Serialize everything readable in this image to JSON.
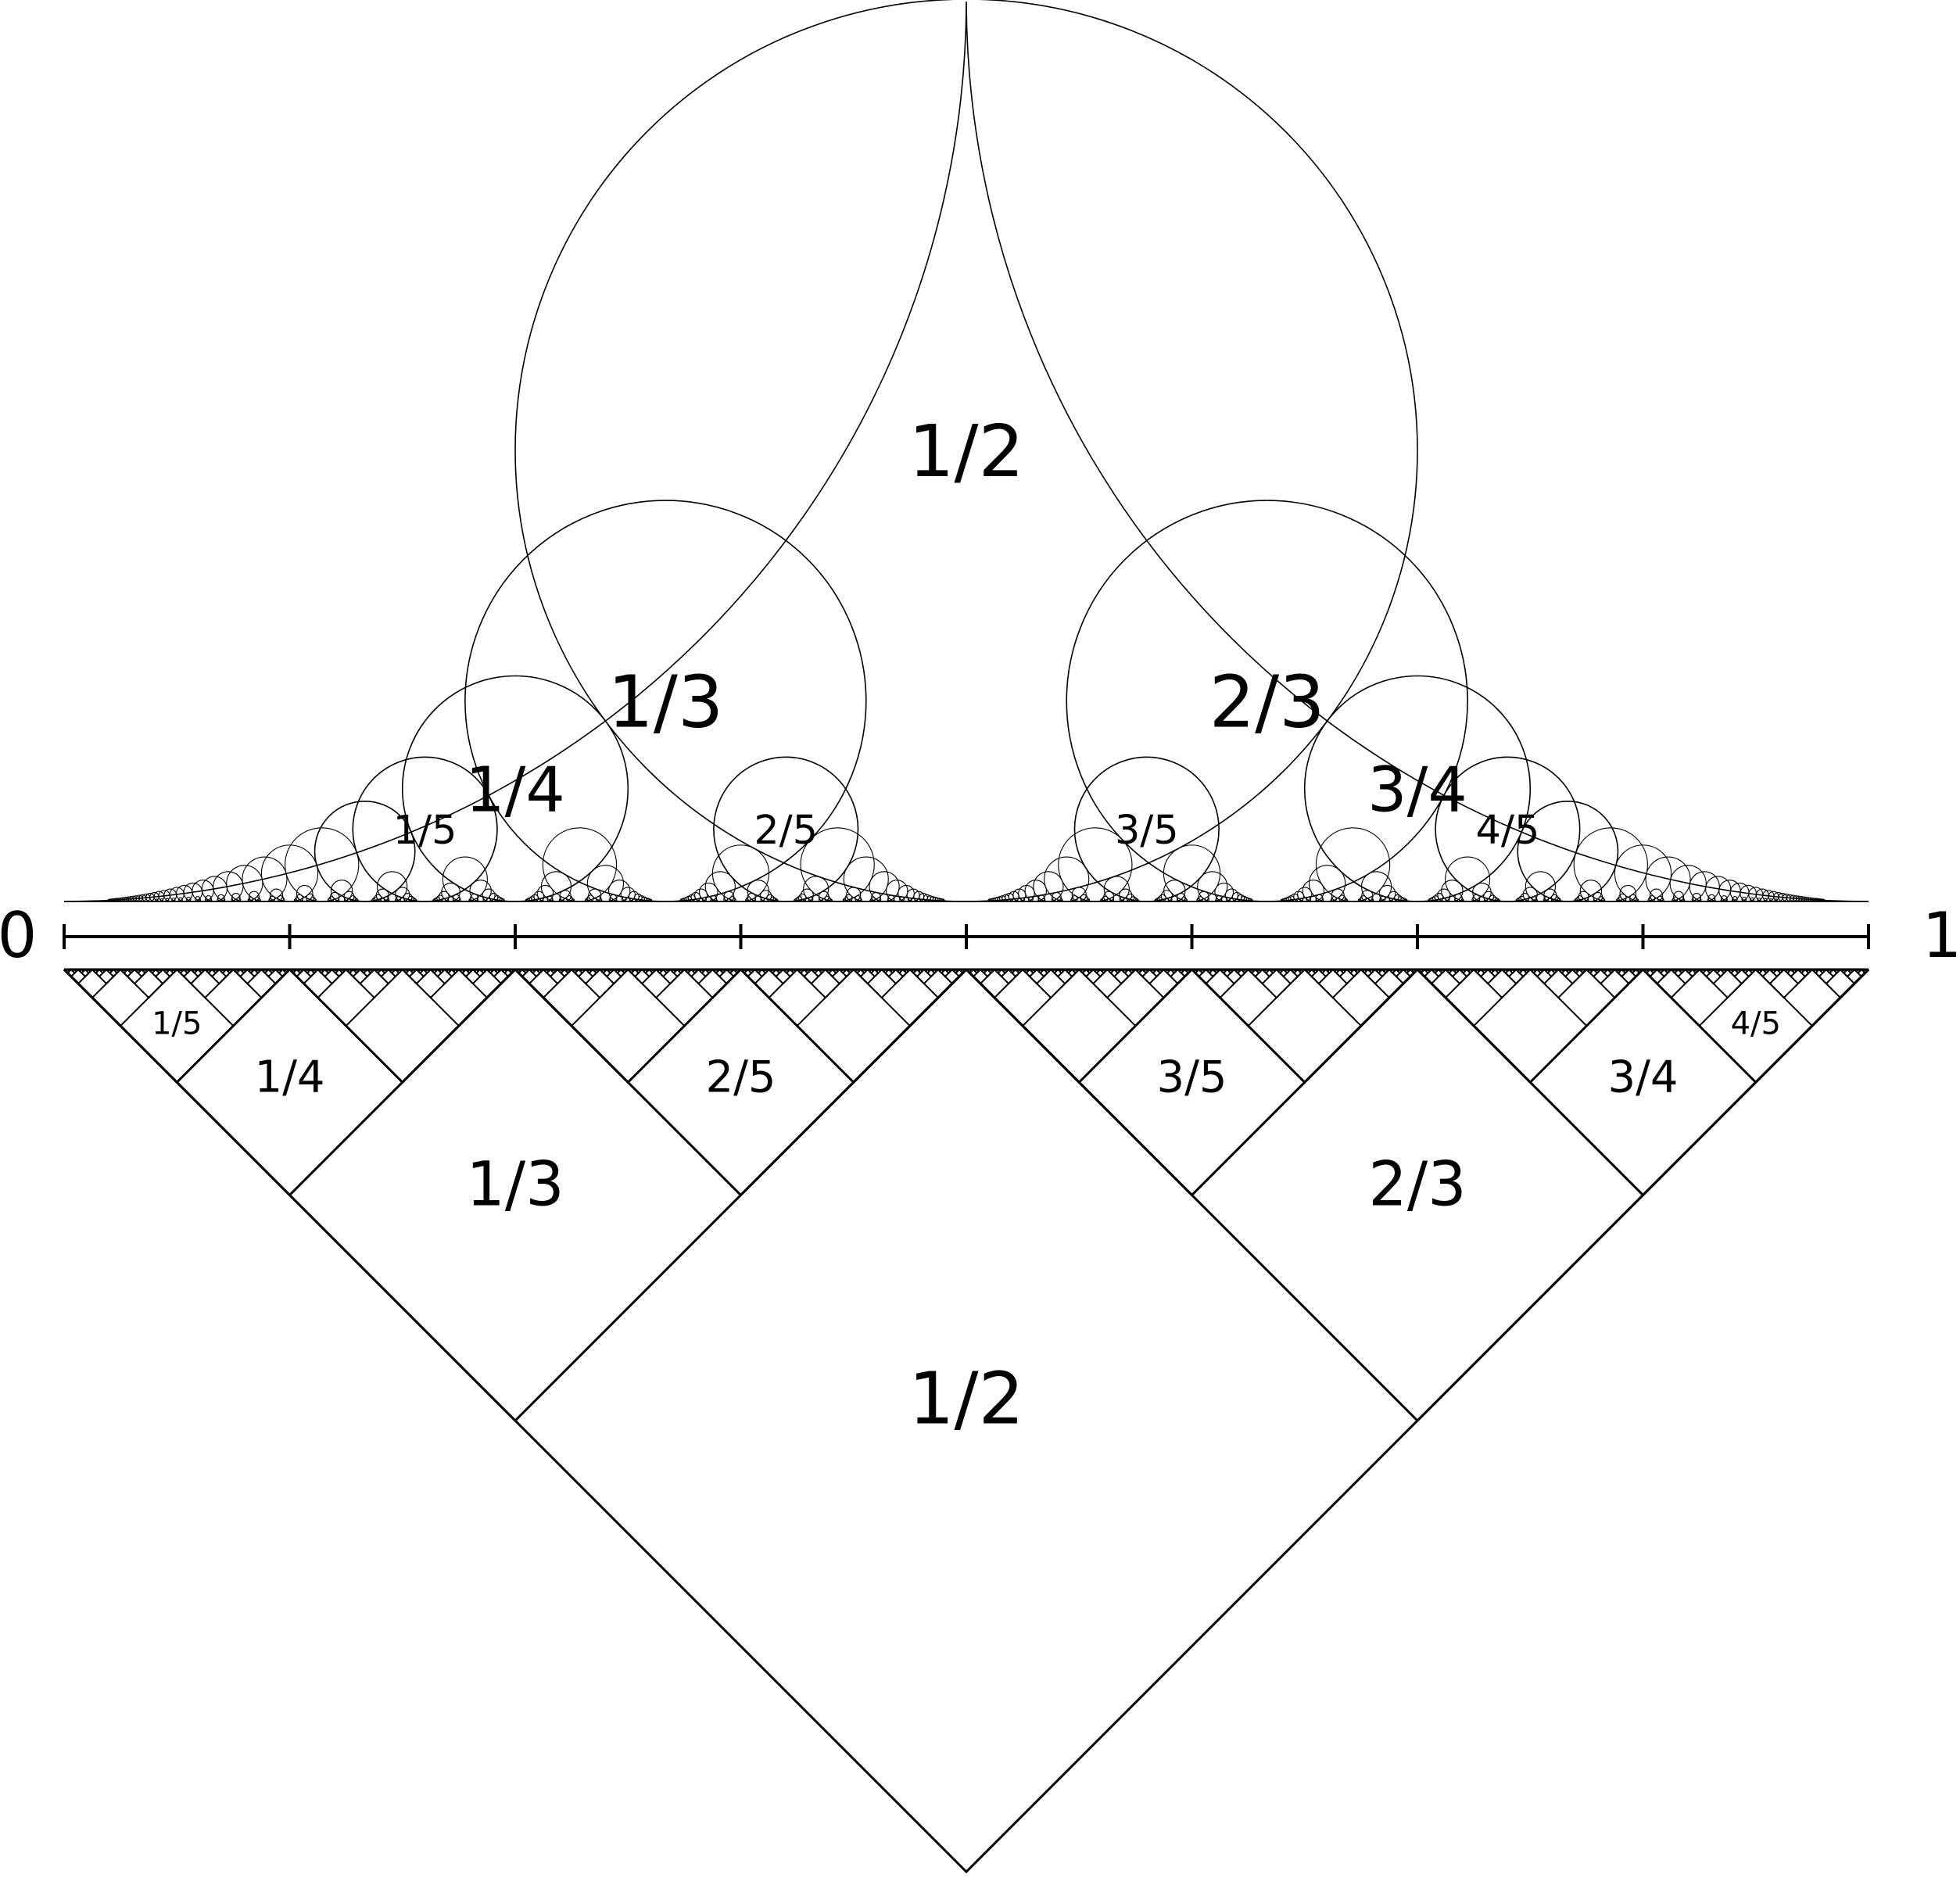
{
  "axis": {
    "start_label": "0",
    "end_label": "1",
    "tick_fractions": [
      0,
      0.125,
      0.25,
      0.375,
      0.5,
      0.625,
      0.75,
      0.875,
      1
    ]
  },
  "fractions": [
    {
      "p": 1,
      "q": 2,
      "label": "1/2"
    },
    {
      "p": 1,
      "q": 3,
      "label": "1/3"
    },
    {
      "p": 2,
      "q": 3,
      "label": "2/3"
    },
    {
      "p": 1,
      "q": 4,
      "label": "1/4"
    },
    {
      "p": 3,
      "q": 4,
      "label": "3/4"
    },
    {
      "p": 1,
      "q": 5,
      "label": "1/5"
    },
    {
      "p": 2,
      "q": 5,
      "label": "2/5"
    },
    {
      "p": 3,
      "q": 5,
      "label": "3/5"
    },
    {
      "p": 4,
      "q": 5,
      "label": "4/5"
    }
  ],
  "colors": {
    "stroke": "#000000",
    "background": "#ffffff"
  }
}
